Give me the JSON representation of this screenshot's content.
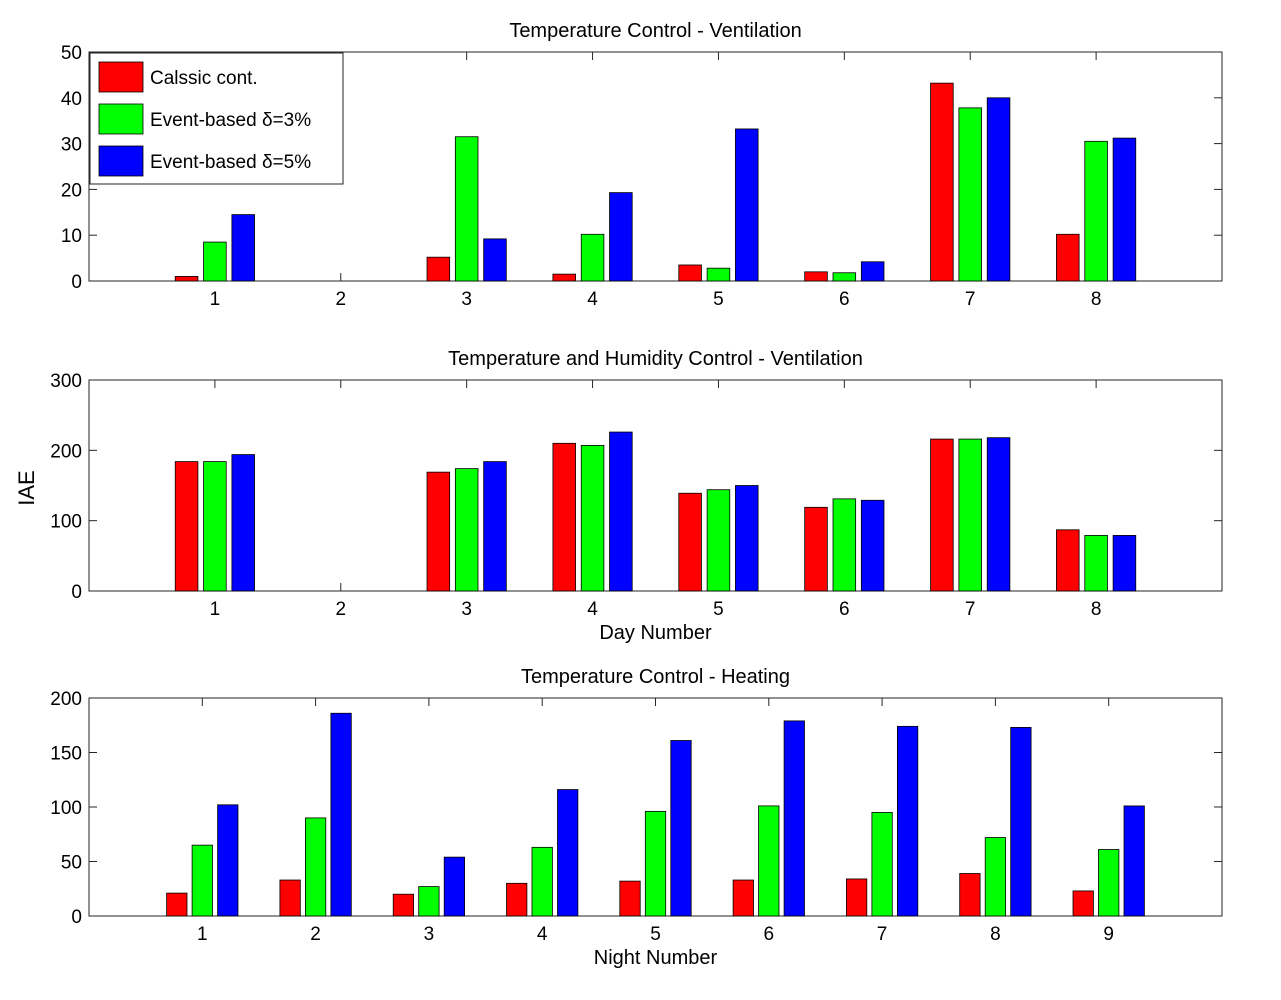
{
  "figure": {
    "shared_ylabel": "IAE"
  },
  "colors": {
    "classic": "#ff0000",
    "event3": "#00ff00",
    "event5": "#0000ff"
  },
  "legend": {
    "entries": [
      {
        "label": "Calssic cont.",
        "color": "#ff0000"
      },
      {
        "label": "Event-based δ=3%",
        "color": "#00ff00"
      },
      {
        "label": "Event-based δ=5%",
        "color": "#0000ff"
      }
    ],
    "placement": "top-left"
  },
  "chart_data": [
    {
      "type": "bar",
      "title": "Temperature Control - Ventilation",
      "xlabel": "",
      "ylabel": "",
      "categories": [
        "1",
        "2",
        "3",
        "4",
        "5",
        "6",
        "7",
        "8"
      ],
      "xlim": [
        0,
        9
      ],
      "ylim": [
        0,
        50
      ],
      "yticks": [
        0,
        10,
        20,
        30,
        40,
        50
      ],
      "series": [
        {
          "name": "Calssic cont.",
          "values": [
            1,
            0,
            5.2,
            1.5,
            3.5,
            2,
            43.2,
            10.2
          ]
        },
        {
          "name": "Event-based δ=3%",
          "values": [
            8.5,
            0,
            31.5,
            10.2,
            2.8,
            1.8,
            37.8,
            30.5
          ]
        },
        {
          "name": "Event-based δ=5%",
          "values": [
            14.5,
            0,
            9.2,
            19.3,
            33.2,
            4.2,
            40,
            31.2
          ]
        }
      ],
      "grid": false,
      "legend": "top-left"
    },
    {
      "type": "bar",
      "title": "Temperature and Humidity Control - Ventilation",
      "xlabel": "Day Number",
      "ylabel": "",
      "categories": [
        "1",
        "2",
        "3",
        "4",
        "5",
        "6",
        "7",
        "8"
      ],
      "xlim": [
        0,
        9
      ],
      "ylim": [
        0,
        300
      ],
      "yticks": [
        0,
        100,
        200,
        300
      ],
      "series": [
        {
          "name": "Calssic cont.",
          "values": [
            184,
            0,
            169,
            210,
            139,
            119,
            216,
            87
          ]
        },
        {
          "name": "Event-based δ=3%",
          "values": [
            184,
            0,
            174,
            207,
            144,
            131,
            216,
            79
          ]
        },
        {
          "name": "Event-based δ=5%",
          "values": [
            194,
            0,
            184,
            226,
            150,
            129,
            218,
            79
          ]
        }
      ],
      "grid": false
    },
    {
      "type": "bar",
      "title": "Temperature Control - Heating",
      "xlabel": "Night Number",
      "ylabel": "",
      "categories": [
        "1",
        "2",
        "3",
        "4",
        "5",
        "6",
        "7",
        "8",
        "9"
      ],
      "xlim": [
        0,
        10
      ],
      "ylim": [
        0,
        200
      ],
      "yticks": [
        0,
        50,
        100,
        150,
        200
      ],
      "series": [
        {
          "name": "Calssic cont.",
          "values": [
            21,
            33,
            20,
            30,
            32,
            33,
            34,
            39,
            23
          ]
        },
        {
          "name": "Event-based δ=3%",
          "values": [
            65,
            90,
            27,
            63,
            96,
            101,
            95,
            72,
            61
          ]
        },
        {
          "name": "Event-based δ=5%",
          "values": [
            102,
            186,
            54,
            116,
            161,
            179,
            174,
            173,
            101
          ]
        }
      ],
      "grid": false
    }
  ]
}
